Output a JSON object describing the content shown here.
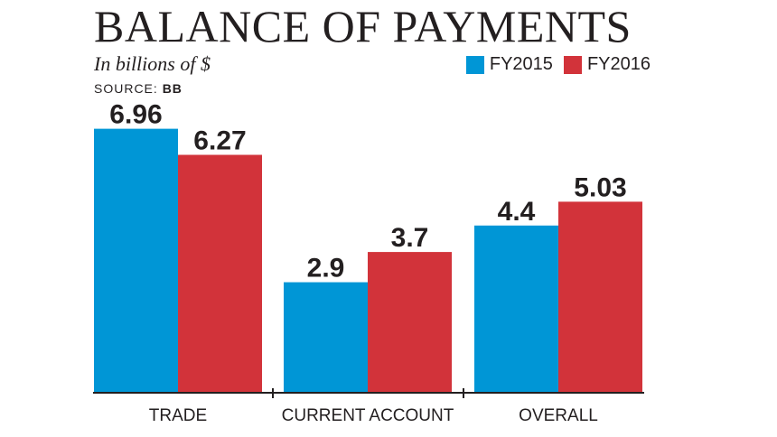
{
  "chart_data": {
    "type": "bar",
    "title": "BALANCE OF PAYMENTS",
    "subtitle": "In billions of $",
    "source_label": "SOURCE:",
    "source_value": "BB",
    "categories": [
      "TRADE",
      "CURRENT ACCOUNT",
      "OVERALL"
    ],
    "series": [
      {
        "name": "FY2015",
        "color": "#0096d6",
        "values": [
          6.96,
          2.9,
          4.4
        ],
        "labels": [
          "6.96",
          "2.9",
          "4.4"
        ]
      },
      {
        "name": "FY2016",
        "color": "#d2333a",
        "values": [
          6.27,
          3.7,
          5.03
        ],
        "labels": [
          "6.27",
          "3.7",
          "5.03"
        ]
      }
    ],
    "ylim": [
      0,
      7.5
    ],
    "grid": false,
    "legend_position": "top-right"
  }
}
